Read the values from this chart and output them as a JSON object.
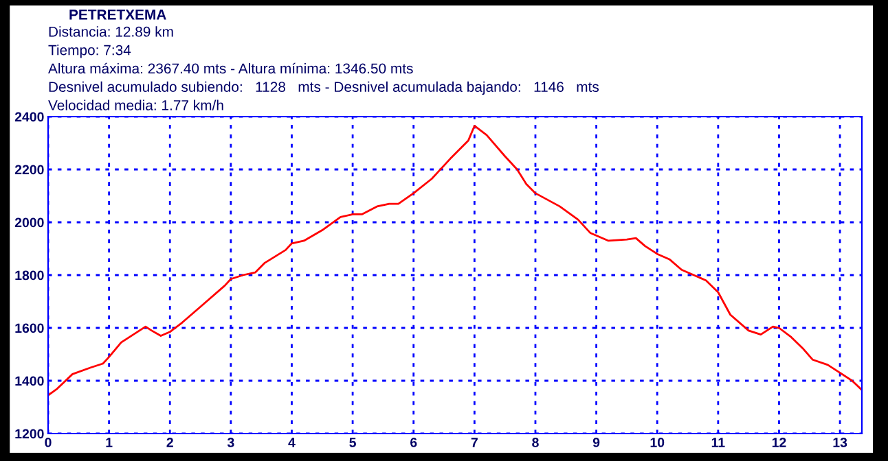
{
  "chart_data": {
    "type": "line",
    "title": "PETRETXEMA",
    "annotations": [
      "Distancia: 12.89 km",
      "Tiempo: 7:34",
      "Altura máxima: 2367.40 mts - Altura mínima: 1346.50 mts",
      "Desnivel acumulado subiendo:   1128   mts - Desnivel acumulada bajando:   1146   mts",
      "Velocidad media: 1.77 km/h"
    ],
    "series": [
      {
        "color": "#ff0000",
        "x": [
          0,
          0.15,
          0.4,
          0.7,
          0.9,
          1.0,
          1.2,
          1.4,
          1.6,
          1.7,
          1.85,
          2.0,
          2.2,
          2.5,
          2.9,
          3.0,
          3.2,
          3.4,
          3.55,
          3.9,
          4.0,
          4.2,
          4.5,
          4.8,
          5.0,
          5.15,
          5.4,
          5.6,
          5.75,
          6.0,
          6.3,
          6.6,
          6.9,
          7.0,
          7.2,
          7.5,
          7.7,
          7.85,
          8.0,
          8.4,
          8.7,
          8.9,
          9.2,
          9.5,
          9.65,
          9.8,
          10.0,
          10.2,
          10.4,
          10.6,
          10.8,
          11.0,
          11.2,
          11.5,
          11.7,
          11.9,
          12.0,
          12.2,
          12.4,
          12.55,
          12.8,
          13.0,
          13.2,
          13.36
        ],
        "values": [
          1345,
          1370,
          1425,
          1450,
          1465,
          1490,
          1545,
          1575,
          1605,
          1590,
          1570,
          1585,
          1620,
          1680,
          1760,
          1785,
          1800,
          1810,
          1845,
          1895,
          1920,
          1930,
          1970,
          2020,
          2030,
          2030,
          2060,
          2070,
          2070,
          2110,
          2165,
          2240,
          2310,
          2365,
          2330,
          2250,
          2200,
          2145,
          2110,
          2060,
          2010,
          1960,
          1930,
          1935,
          1940,
          1910,
          1880,
          1860,
          1820,
          1800,
          1780,
          1735,
          1650,
          1590,
          1575,
          1605,
          1600,
          1565,
          1520,
          1480,
          1460,
          1430,
          1400,
          1365
        ]
      }
    ],
    "xlim": [
      0,
      13.36
    ],
    "xticks": [
      0,
      1,
      2,
      3,
      4,
      5,
      6,
      7,
      8,
      9,
      10,
      11,
      12,
      13
    ],
    "ylim": [
      1200,
      2400
    ],
    "yticks": [
      1200,
      1400,
      1600,
      1800,
      2000,
      2200,
      2400
    ],
    "grid": true,
    "line_style": "solid",
    "marker": "none",
    "legend": false
  }
}
